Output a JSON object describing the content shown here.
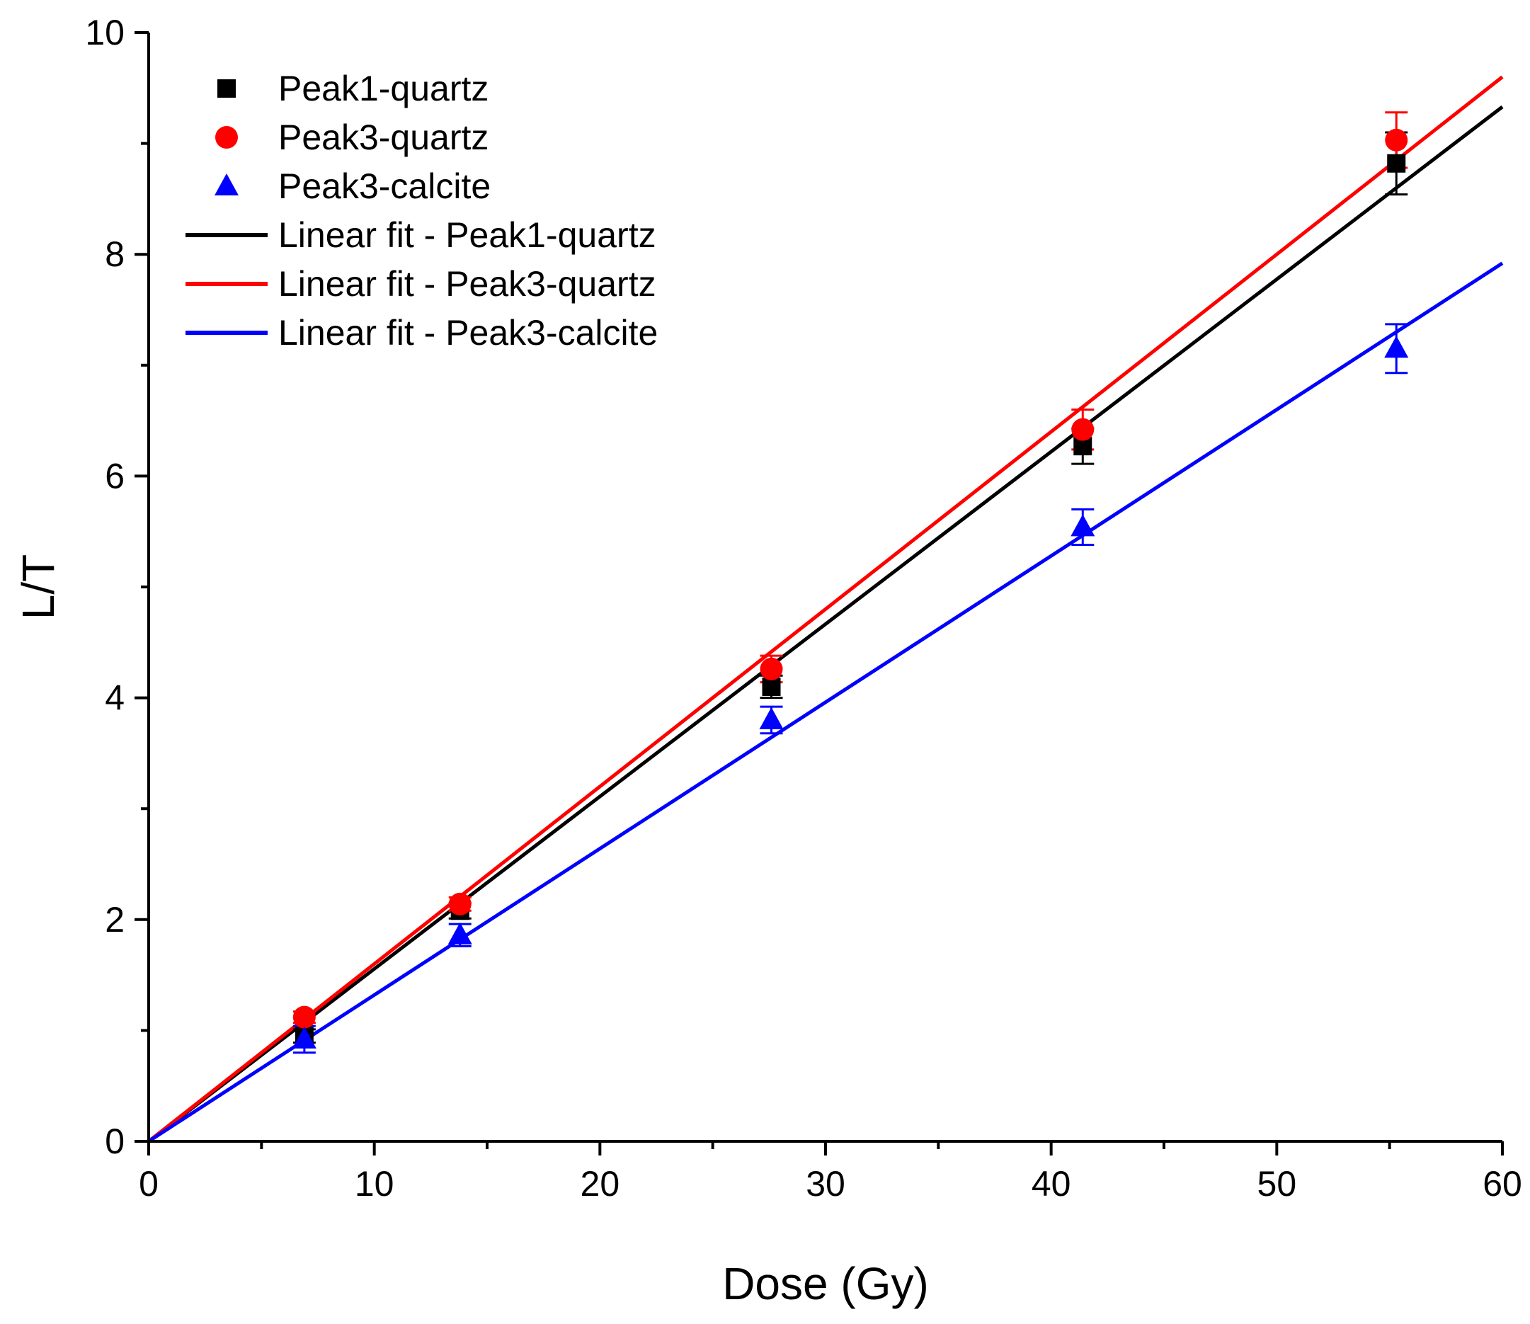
{
  "chart_data": {
    "type": "scatter",
    "xlabel": "Dose (Gy)",
    "ylabel": "L/T",
    "xlim": [
      0,
      60
    ],
    "ylim": [
      0,
      10
    ],
    "x_ticks": [
      0,
      10,
      20,
      30,
      40,
      50,
      60
    ],
    "y_ticks": [
      0,
      2,
      4,
      6,
      8,
      10
    ],
    "x_minor_step": 5,
    "y_minor_step": 1,
    "legend_position": "top-left",
    "series": [
      {
        "name": "Peak1-quartz",
        "marker": "square",
        "color": "#000000",
        "points": [
          {
            "x": 6.9,
            "y": 0.95,
            "err": 0.06
          },
          {
            "x": 13.8,
            "y": 2.08,
            "err": 0.07
          },
          {
            "x": 27.6,
            "y": 4.1,
            "err": 0.1
          },
          {
            "x": 41.4,
            "y": 6.27,
            "err": 0.16
          },
          {
            "x": 55.3,
            "y": 8.82,
            "err": 0.28
          }
        ]
      },
      {
        "name": "Peak3-quartz",
        "marker": "circle",
        "color": "#ff0000",
        "points": [
          {
            "x": 6.9,
            "y": 1.12,
            "err": 0.05
          },
          {
            "x": 13.8,
            "y": 2.14,
            "err": 0.06
          },
          {
            "x": 27.6,
            "y": 4.26,
            "err": 0.12
          },
          {
            "x": 41.4,
            "y": 6.42,
            "err": 0.18
          },
          {
            "x": 55.3,
            "y": 9.03,
            "err": 0.25
          }
        ]
      },
      {
        "name": "Peak3-calcite",
        "marker": "triangle",
        "color": "#0000ff",
        "points": [
          {
            "x": 6.9,
            "y": 0.92,
            "err": 0.12
          },
          {
            "x": 13.8,
            "y": 1.86,
            "err": 0.1
          },
          {
            "x": 27.6,
            "y": 3.8,
            "err": 0.12
          },
          {
            "x": 41.4,
            "y": 5.54,
            "err": 0.16
          },
          {
            "x": 55.3,
            "y": 7.15,
            "err": 0.22
          }
        ]
      }
    ],
    "fits": [
      {
        "name": "Linear fit - Peak1-quartz",
        "color": "#000000",
        "slope": 0.1555,
        "intercept": 0
      },
      {
        "name": "Linear fit - Peak3-quartz",
        "color": "#ff0000",
        "slope": 0.16,
        "intercept": 0
      },
      {
        "name": "Linear fit - Peak3-calcite",
        "color": "#0000ff",
        "slope": 0.132,
        "intercept": 0
      }
    ]
  }
}
